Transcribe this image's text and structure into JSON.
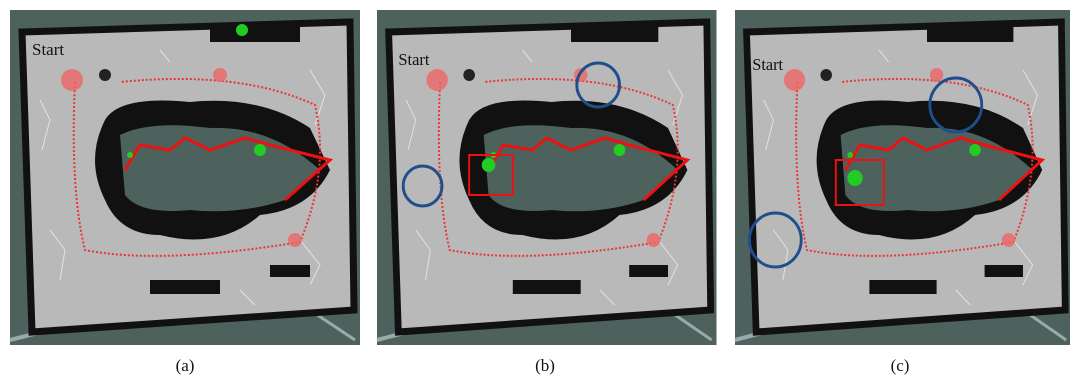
{
  "panels": [
    {
      "start_label": "Start",
      "caption": "(a)"
    },
    {
      "start_label": "Start",
      "caption": "(b)"
    },
    {
      "start_label": "Start",
      "caption": "(c)"
    }
  ]
}
